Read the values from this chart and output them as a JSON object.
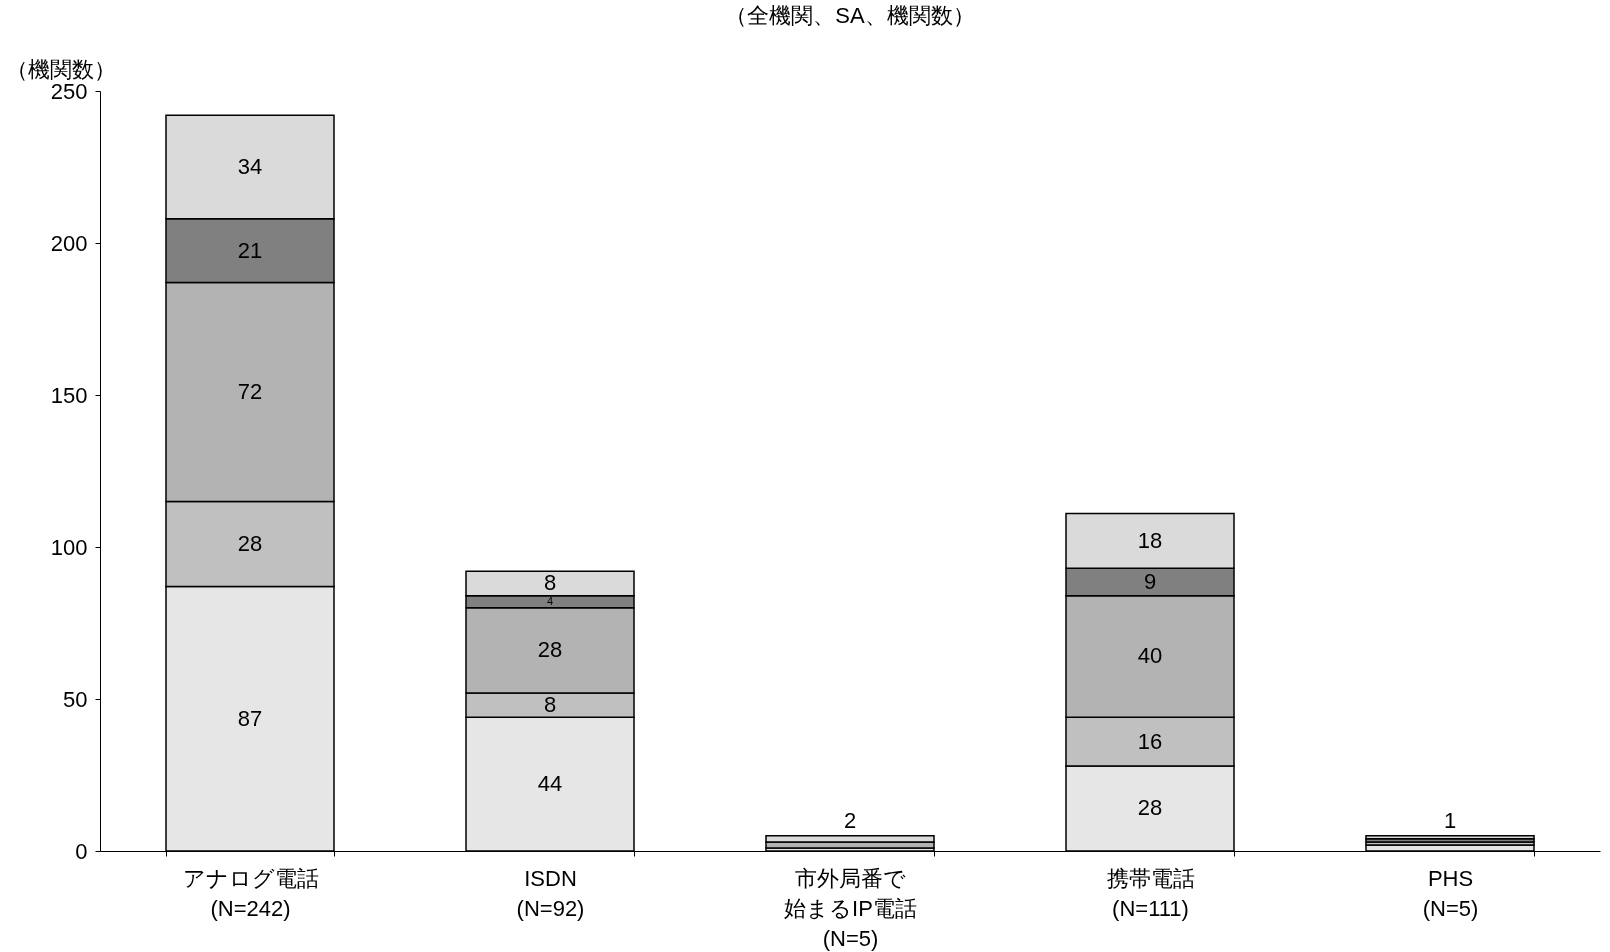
{
  "chart_data": {
    "type": "bar",
    "title": "（全機関、SA、機関数）",
    "ylabel": "（機関数）",
    "categories": [
      "アナログ電話\n(N=242)",
      "ISDN\n(N=92)",
      "市外局番で始まるIP電話\n(N=5)",
      "携帯電話\n(N=111)",
      "PHS\n(N=5)"
    ],
    "series": [
      {
        "color": "#e6e6e6",
        "values": [
          87,
          44,
          1,
          28,
          2
        ],
        "value_labels": [
          "87",
          "44",
          null,
          "28",
          null
        ]
      },
      {
        "color": "#c0c0c0",
        "values": [
          28,
          8,
          null,
          16,
          1
        ],
        "value_labels": [
          "28",
          "8",
          null,
          "16",
          null
        ]
      },
      {
        "color": "#b3b3b3",
        "values": [
          72,
          28,
          2,
          40,
          null
        ],
        "value_labels": [
          "72",
          "28",
          null,
          "40",
          null
        ]
      },
      {
        "color": "#808080",
        "values": [
          21,
          4,
          null,
          9,
          1
        ],
        "value_labels": [
          "21",
          "4",
          null,
          "9",
          null
        ]
      },
      {
        "color": "#dadada",
        "values": [
          34,
          8,
          2,
          18,
          1
        ],
        "value_labels": [
          "34",
          "8",
          "2",
          "18",
          "1"
        ]
      }
    ],
    "stacked": true,
    "ylim": [
      0,
      250
    ],
    "yticks": [
      0,
      50,
      100,
      150,
      200,
      250
    ],
    "grid": false
  }
}
